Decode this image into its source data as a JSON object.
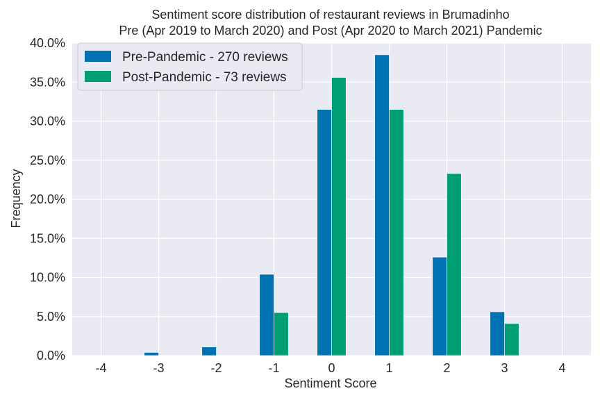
{
  "chart_data": {
    "type": "bar",
    "title": "Sentiment score distribution of restaurant reviews in Brumadinho",
    "subtitle": "Pre (Apr 2019 to March 2020) and Post (Apr 2020 to March 2021) Pandemic",
    "xlabel": "Sentiment Score",
    "ylabel": "Frequency",
    "categories": [
      -4,
      -3,
      -2,
      -1,
      0,
      1,
      2,
      3,
      4
    ],
    "category_labels": [
      "-4",
      "-3",
      "-2",
      "-1",
      "0",
      "1",
      "2",
      "3",
      "4"
    ],
    "ylim": [
      0,
      40
    ],
    "yticks": [
      0,
      5,
      10,
      15,
      20,
      25,
      30,
      35,
      40
    ],
    "ytick_labels": [
      "0.0%",
      "5.0%",
      "10.0%",
      "15.0%",
      "20.0%",
      "25.0%",
      "30.0%",
      "35.0%",
      "40.0%"
    ],
    "grid": true,
    "legend_position": "top-left",
    "series": [
      {
        "name": "Pre-Pandemic - 270 reviews",
        "color": "#0072B2",
        "values": [
          0,
          0.4,
          1.1,
          10.4,
          31.5,
          38.5,
          12.6,
          5.6,
          0
        ]
      },
      {
        "name": "Post-Pandemic - 73 reviews",
        "color": "#009E73",
        "values": [
          0,
          0,
          0,
          5.5,
          35.6,
          31.5,
          23.3,
          4.1,
          0
        ]
      }
    ]
  }
}
